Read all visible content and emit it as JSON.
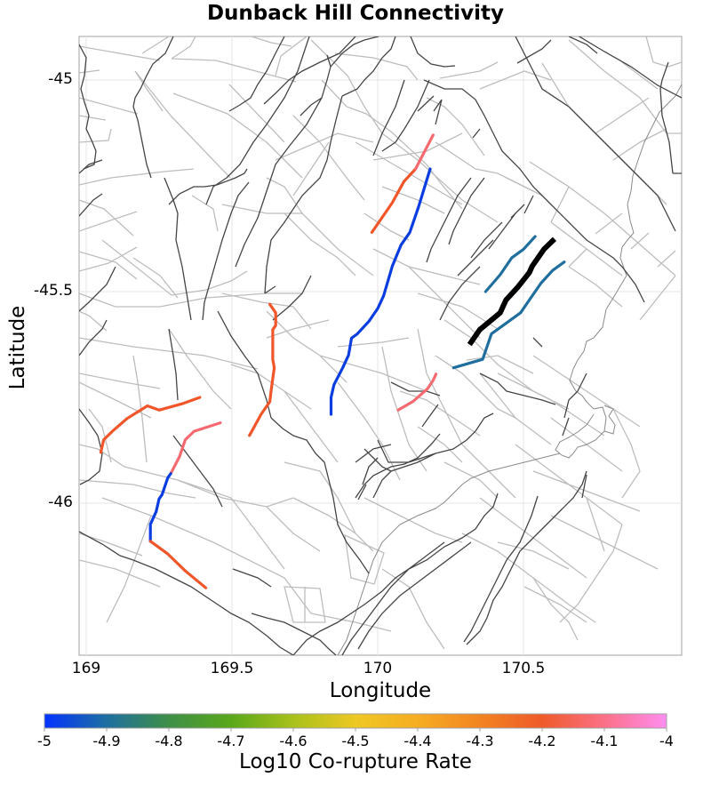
{
  "chart_data": {
    "type": "map",
    "title": "Dunback Hill Connectivity",
    "xlabel": "Longitude",
    "ylabel": "Latitude",
    "xlim": [
      168.98,
      171.0
    ],
    "ylim": [
      -46.43,
      -44.9
    ],
    "x_ticks": [
      "169",
      "169.5",
      "170",
      "170.5"
    ],
    "y_ticks": [
      "-45",
      "-45.5",
      "-46"
    ],
    "grid": true,
    "colorbar": {
      "label": "Log10 Co-rupture Rate",
      "range": [
        -5,
        -4
      ],
      "ticks": [
        "-5",
        "-4.9",
        "-4.8",
        "-4.7",
        "-4.6",
        "-4.5",
        "-4.4",
        "-4.3",
        "-4.2",
        "-4.1",
        "-4"
      ],
      "colors": [
        "#0433ff",
        "#1e6fa0",
        "#4b9a2a",
        "#8bbf1a",
        "#e8c81e",
        "#f5b421",
        "#f08a20",
        "#ef5a2a",
        "#f46a70",
        "#f98bd0",
        "#ff8df0"
      ],
      "position": "bottom"
    },
    "highlighted_fault": {
      "name": "Dunback Hill",
      "color": "#000000",
      "points": [
        [
          170.32,
          -45.62
        ],
        [
          170.35,
          -45.59
        ],
        [
          170.42,
          -45.55
        ],
        [
          170.44,
          -45.52
        ],
        [
          170.48,
          -45.49
        ],
        [
          170.52,
          -45.455
        ],
        [
          170.53,
          -45.44
        ],
        [
          170.57,
          -45.4
        ],
        [
          170.6,
          -45.38
        ]
      ]
    },
    "colored_faults": [
      {
        "log10_rate": -4.2,
        "color": "#f0562a",
        "points": [
          [
            169.98,
            -45.36
          ],
          [
            170.05,
            -45.29
          ],
          [
            170.09,
            -45.24
          ],
          [
            170.13,
            -45.21
          ]
        ]
      },
      {
        "log10_rate": -4.1,
        "color": "#f46a70",
        "points": [
          [
            170.13,
            -45.21
          ],
          [
            170.16,
            -45.17
          ],
          [
            170.19,
            -45.13
          ]
        ]
      },
      {
        "log10_rate": -5.0,
        "color": "#0a3de0",
        "points": [
          [
            169.84,
            -45.79
          ],
          [
            169.84,
            -45.75
          ],
          [
            169.85,
            -45.72
          ],
          [
            169.88,
            -45.68
          ],
          [
            169.9,
            -45.65
          ],
          [
            169.91,
            -45.61
          ],
          [
            169.93,
            -45.6
          ],
          [
            169.97,
            -45.57
          ],
          [
            170.0,
            -45.54
          ],
          [
            170.02,
            -45.51
          ],
          [
            170.05,
            -45.44
          ],
          [
            170.08,
            -45.39
          ],
          [
            170.11,
            -45.36
          ],
          [
            170.14,
            -45.3
          ],
          [
            170.18,
            -45.21
          ]
        ]
      },
      {
        "log10_rate": -4.9,
        "color": "#1f6e9e",
        "points": [
          [
            170.37,
            -45.5
          ],
          [
            170.42,
            -45.46
          ],
          [
            170.46,
            -45.42
          ],
          [
            170.5,
            -45.4
          ],
          [
            170.54,
            -45.37
          ]
        ]
      },
      {
        "log10_rate": -4.9,
        "color": "#1f6e9e",
        "points": [
          [
            170.26,
            -45.68
          ],
          [
            170.36,
            -45.66
          ],
          [
            170.39,
            -45.6
          ],
          [
            170.45,
            -45.57
          ],
          [
            170.49,
            -45.55
          ],
          [
            170.56,
            -45.48
          ],
          [
            170.6,
            -45.45
          ],
          [
            170.64,
            -45.43
          ]
        ]
      },
      {
        "log10_rate": -4.1,
        "color": "#f46a70",
        "points": [
          [
            170.07,
            -45.78
          ],
          [
            170.12,
            -45.76
          ],
          [
            170.17,
            -45.73
          ],
          [
            170.19,
            -45.71
          ],
          [
            170.2,
            -45.695
          ]
        ]
      },
      {
        "log10_rate": -4.2,
        "color": "#f0562a",
        "points": [
          [
            169.63,
            -45.53
          ],
          [
            169.65,
            -45.55
          ],
          [
            169.65,
            -45.58
          ],
          [
            169.64,
            -45.59
          ],
          [
            169.64,
            -45.66
          ],
          [
            169.645,
            -45.68
          ],
          [
            169.635,
            -45.73
          ],
          [
            169.63,
            -45.76
          ],
          [
            169.6,
            -45.79
          ],
          [
            169.56,
            -45.84
          ]
        ]
      },
      {
        "log10_rate": -4.2,
        "color": "#f0562a",
        "points": [
          [
            169.05,
            -45.88
          ],
          [
            169.06,
            -45.85
          ],
          [
            169.09,
            -45.83
          ],
          [
            169.14,
            -45.8
          ],
          [
            169.21,
            -45.77
          ],
          [
            169.25,
            -45.78
          ],
          [
            169.33,
            -45.765
          ],
          [
            169.39,
            -45.75
          ]
        ]
      },
      {
        "log10_rate": -4.1,
        "color": "#f46a70",
        "points": [
          [
            169.29,
            -45.93
          ],
          [
            169.32,
            -45.89
          ],
          [
            169.34,
            -45.85
          ],
          [
            169.37,
            -45.83
          ],
          [
            169.46,
            -45.81
          ]
        ]
      },
      {
        "log10_rate": -5.0,
        "color": "#0a3de0",
        "points": [
          [
            169.22,
            -46.09
          ],
          [
            169.22,
            -46.05
          ],
          [
            169.24,
            -46.02
          ],
          [
            169.25,
            -45.99
          ],
          [
            169.26,
            -45.98
          ],
          [
            169.28,
            -45.94
          ],
          [
            169.29,
            -45.93
          ]
        ]
      },
      {
        "log10_rate": -4.2,
        "color": "#f0562a",
        "points": [
          [
            169.22,
            -46.09
          ],
          [
            169.28,
            -46.12
          ],
          [
            169.34,
            -46.16
          ],
          [
            169.41,
            -46.2
          ]
        ]
      }
    ]
  }
}
